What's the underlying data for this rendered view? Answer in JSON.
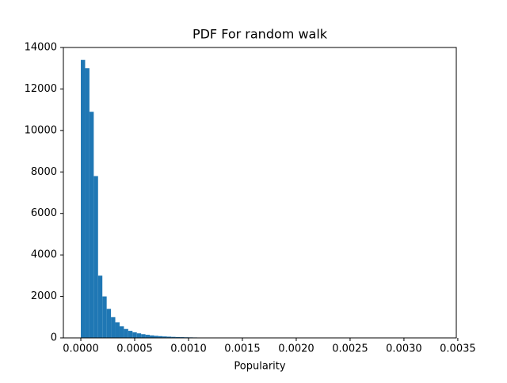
{
  "chart_data": {
    "type": "histogram",
    "title": "PDF For random walk",
    "xlabel": "Popularity",
    "color": "#1f77b4",
    "bins": [
      0,
      4e-05,
      8e-05,
      0.00012,
      0.00016,
      0.0002,
      0.00024,
      0.00028,
      0.00032,
      0.00036,
      0.0004,
      0.00044,
      0.00048,
      0.00052,
      0.00056,
      0.0006,
      0.00064,
      0.00068,
      0.00072,
      0.00076,
      0.0008,
      0.00084,
      0.00088,
      0.00092,
      0.00096,
      0.001,
      0.00104,
      0.00108,
      0.00112,
      0.00116,
      0.0012,
      0.00124,
      0.00128,
      0.00132,
      0.00136,
      0.0014,
      0.00144,
      0.00148,
      0.00152,
      0.00156,
      0.0016,
      0.00164,
      0.00168,
      0.00172,
      0.00176,
      0.0018,
      0.00184,
      0.00188,
      0.00192,
      0.00196,
      0.002,
      0.00204,
      0.00208,
      0.00212,
      0.00216,
      0.0022,
      0.00224,
      0.00228,
      0.00232,
      0.00236,
      0.0024,
      0.00244,
      0.00248,
      0.00252,
      0.00256,
      0.0026,
      0.00264,
      0.00268,
      0.00272,
      0.00276,
      0.0028,
      0.00284,
      0.00288,
      0.00292,
      0.00296,
      0.003,
      0.00304,
      0.00308,
      0.00312,
      0.00316,
      0.0032,
      0.00324,
      0.00328,
      0.00332,
      0.00336,
      0.0034
    ],
    "counts": [
      13400,
      13000,
      10900,
      7800,
      3000,
      2000,
      1400,
      1000,
      750,
      560,
      430,
      340,
      270,
      220,
      180,
      150,
      120,
      100,
      85,
      70,
      60,
      50,
      42,
      36,
      30,
      26,
      22,
      19,
      16,
      14,
      12,
      10,
      9,
      8,
      7,
      6,
      5,
      5,
      4,
      4,
      3,
      3,
      3,
      2,
      2,
      2,
      2,
      2,
      1,
      1,
      1,
      1,
      1,
      0,
      1,
      1,
      0,
      1,
      0,
      1,
      0,
      1,
      0,
      0,
      1,
      0,
      1,
      0,
      0,
      1,
      0,
      0,
      1,
      0,
      0,
      0,
      1,
      0,
      0,
      1,
      0,
      0,
      0,
      0,
      1
    ],
    "xlim": [
      -0.000162,
      0.003486
    ],
    "ylim": [
      0,
      14000
    ],
    "xticks": [
      {
        "value": 0,
        "label": "0.0000"
      },
      {
        "value": 0.0005,
        "label": "0.0005"
      },
      {
        "value": 0.001,
        "label": "0.0010"
      },
      {
        "value": 0.0015,
        "label": "0.0015"
      },
      {
        "value": 0.002,
        "label": "0.0020"
      },
      {
        "value": 0.0025,
        "label": "0.0025"
      },
      {
        "value": 0.003,
        "label": "0.0030"
      },
      {
        "value": 0.0035,
        "label": "0.0035"
      }
    ],
    "yticks": [
      0,
      2000,
      4000,
      6000,
      8000,
      10000,
      12000,
      14000
    ]
  }
}
